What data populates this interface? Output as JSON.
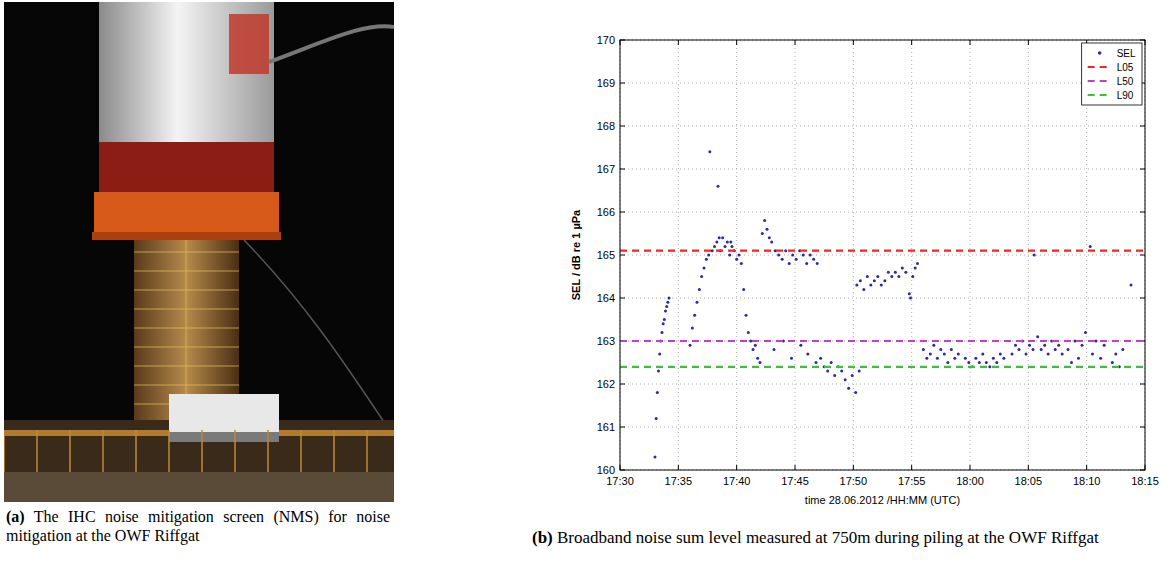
{
  "figure": {
    "panels": [
      {
        "label": "(a)",
        "caption": "The IHC noise mitigation screen (NMS) for noise mitigation at the OWF Riffgat"
      },
      {
        "label": "(b)",
        "caption": "Broadband noise sum level measured at 750m during piling at the OWF Riffgat"
      }
    ]
  },
  "chart_data": {
    "type": "scatter",
    "x_label": "time 28.06.2012 /HH:MM (UTC)",
    "y_label": "SEL / dB re 1 µPa",
    "xlim": [
      1050,
      1095
    ],
    "xticks": [
      {
        "value": 1050,
        "label": "17:30"
      },
      {
        "value": 1055,
        "label": "17:35"
      },
      {
        "value": 1060,
        "label": "17:40"
      },
      {
        "value": 1065,
        "label": "17:45"
      },
      {
        "value": 1070,
        "label": "17:50"
      },
      {
        "value": 1075,
        "label": "17:55"
      },
      {
        "value": 1080,
        "label": "18:00"
      },
      {
        "value": 1085,
        "label": "18:05"
      },
      {
        "value": 1090,
        "label": "18:10"
      },
      {
        "value": 1095,
        "label": "18:15"
      }
    ],
    "ylim": [
      160,
      170
    ],
    "yticks": [
      160,
      161,
      162,
      163,
      164,
      165,
      166,
      167,
      168,
      169,
      170
    ],
    "grid": true,
    "legend": "upper right",
    "series": [
      {
        "name": "SEL",
        "type": "scatter",
        "color": "#2a2aa8",
        "marker": "dot",
        "x": [
          1053.0,
          1053.1,
          1053.2,
          1053.3,
          1053.4,
          1053.5,
          1053.6,
          1053.7,
          1053.8,
          1053.9,
          1054.0,
          1054.1,
          1054.2,
          1056.0,
          1056.2,
          1056.4,
          1056.6,
          1056.8,
          1057.0,
          1057.2,
          1057.4,
          1057.6,
          1057.7,
          1057.9,
          1058.1,
          1058.3,
          1058.4,
          1058.6,
          1058.8,
          1059.0,
          1059.2,
          1059.4,
          1059.6,
          1059.8,
          1060.0,
          1060.2,
          1060.4,
          1058.5,
          1059.5,
          1060.6,
          1060.8,
          1061.0,
          1061.2,
          1061.4,
          1061.6,
          1061.8,
          1062.0,
          1062.2,
          1062.4,
          1062.6,
          1062.8,
          1063.0,
          1063.3,
          1063.6,
          1063.9,
          1064.2,
          1064.5,
          1064.8,
          1065.1,
          1065.4,
          1065.7,
          1066.0,
          1066.3,
          1066.6,
          1066.9,
          1063.2,
          1064.0,
          1064.7,
          1065.5,
          1066.1,
          1066.8,
          1067.2,
          1067.5,
          1067.8,
          1068.1,
          1068.4,
          1068.7,
          1069.0,
          1069.3,
          1069.6,
          1069.9,
          1070.2,
          1070.5,
          1070.3,
          1070.6,
          1070.9,
          1071.2,
          1071.5,
          1071.8,
          1072.1,
          1072.4,
          1072.7,
          1073.0,
          1073.3,
          1073.6,
          1073.9,
          1074.2,
          1074.5,
          1074.9,
          1075.1,
          1075.3,
          1075.5,
          1074.8,
          1076.0,
          1076.3,
          1076.6,
          1076.9,
          1077.2,
          1077.5,
          1077.8,
          1078.1,
          1078.4,
          1078.7,
          1079.0,
          1079.6,
          1079.9,
          1080.2,
          1080.5,
          1080.8,
          1081.1,
          1081.4,
          1081.7,
          1082.0,
          1082.3,
          1082.6,
          1082.9,
          1083.6,
          1083.9,
          1084.2,
          1084.5,
          1084.8,
          1085.1,
          1085.4,
          1085.5,
          1085.8,
          1086.1,
          1086.4,
          1086.7,
          1087.0,
          1087.3,
          1087.6,
          1087.9,
          1088.4,
          1088.7,
          1089.0,
          1089.3,
          1089.6,
          1089.9,
          1090.3,
          1090.5,
          1090.8,
          1091.2,
          1091.5,
          1092.2,
          1092.5,
          1092.8,
          1093.1,
          1093.8
        ],
        "values": [
          160.3,
          161.2,
          161.8,
          162.3,
          162.7,
          163.0,
          163.2,
          163.4,
          163.5,
          163.7,
          163.8,
          163.9,
          164.0,
          162.9,
          163.3,
          163.6,
          163.9,
          164.2,
          164.5,
          164.7,
          164.9,
          165.0,
          167.4,
          165.1,
          165.2,
          165.3,
          166.6,
          165.1,
          165.4,
          165.2,
          165.3,
          165.0,
          165.2,
          165.1,
          164.9,
          165.0,
          164.8,
          165.4,
          165.3,
          164.2,
          163.6,
          163.2,
          163.0,
          162.8,
          162.9,
          162.6,
          162.5,
          165.5,
          165.8,
          165.6,
          165.4,
          165.3,
          165.1,
          165.0,
          164.9,
          165.1,
          164.8,
          165.0,
          164.9,
          165.1,
          165.0,
          164.8,
          165.0,
          164.9,
          164.8,
          162.8,
          163.0,
          162.6,
          162.9,
          162.7,
          162.5,
          162.6,
          162.4,
          162.3,
          162.5,
          162.2,
          162.4,
          162.3,
          162.1,
          161.9,
          162.2,
          161.8,
          162.3,
          164.3,
          164.4,
          164.2,
          164.5,
          164.3,
          164.4,
          164.5,
          164.3,
          164.4,
          164.6,
          164.5,
          164.6,
          164.5,
          164.7,
          164.6,
          164.0,
          164.5,
          164.7,
          164.8,
          164.1,
          162.8,
          162.6,
          162.7,
          162.9,
          162.6,
          162.8,
          162.7,
          162.5,
          162.8,
          162.6,
          162.7,
          162.6,
          162.5,
          162.4,
          162.6,
          162.5,
          162.7,
          162.5,
          162.4,
          162.6,
          162.5,
          162.7,
          162.6,
          162.7,
          162.9,
          162.8,
          163.0,
          162.7,
          162.9,
          162.8,
          165.0,
          163.1,
          162.8,
          162.9,
          162.7,
          163.0,
          162.8,
          162.9,
          162.7,
          162.8,
          162.5,
          163.0,
          162.6,
          162.9,
          163.2,
          165.2,
          162.7,
          163.0,
          162.6,
          162.9,
          162.5,
          162.7,
          162.4,
          162.8,
          164.3
        ]
      },
      {
        "name": "L05",
        "type": "line",
        "color": "#ff2020",
        "line_style": "dashed",
        "x": [
          1050,
          1095
        ],
        "values": [
          165.1,
          165.1
        ]
      },
      {
        "name": "L50",
        "type": "line",
        "color": "#c040c8",
        "line_style": "dashed",
        "x": [
          1050,
          1095
        ],
        "values": [
          163.0,
          163.0
        ]
      },
      {
        "name": "L90",
        "type": "line",
        "color": "#3cbf3c",
        "line_style": "dashed",
        "x": [
          1050,
          1095
        ],
        "values": [
          162.4,
          162.4
        ]
      }
    ]
  }
}
